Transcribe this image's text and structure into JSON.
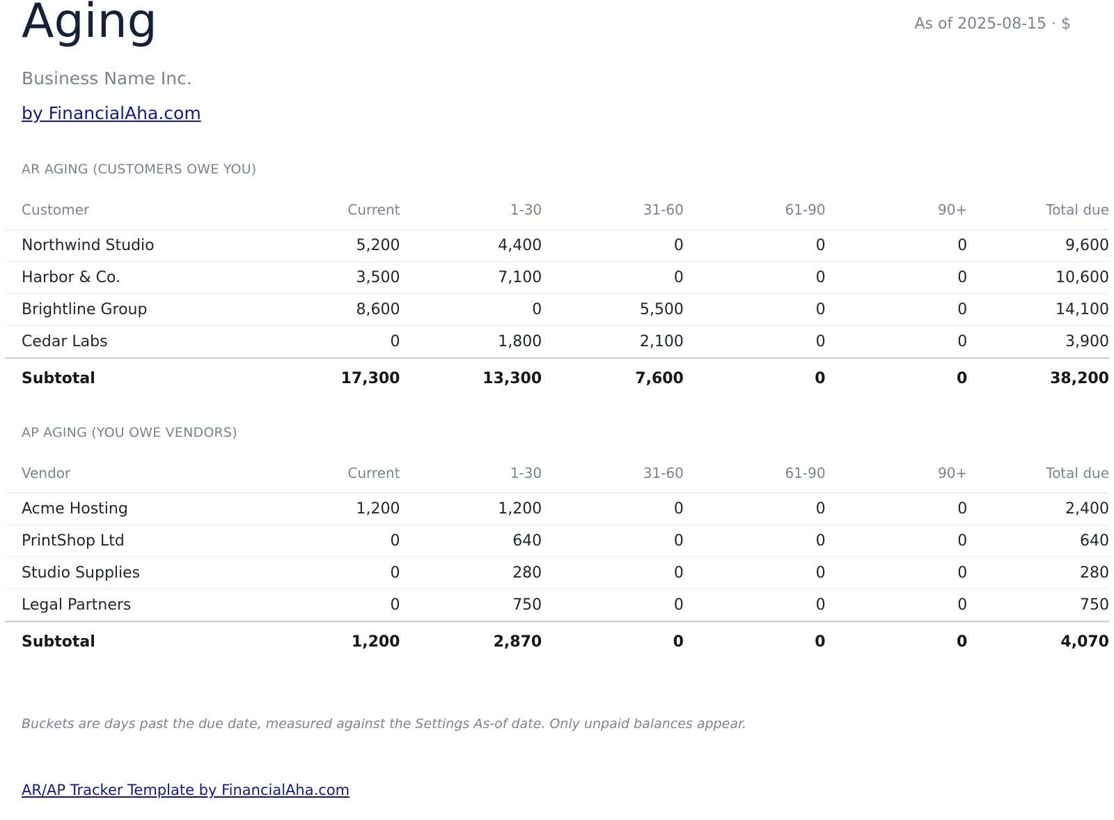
{
  "header": {
    "title": "Aging",
    "as_of": "As of 2025-08-15 · $",
    "business_name": "Business Name Inc.",
    "brand_link": "by FinancialAha.com"
  },
  "ar": {
    "heading": "AR AGING (CUSTOMERS OWE YOU)",
    "columns": [
      "Customer",
      "Current",
      "1-30",
      "31-60",
      "61-90",
      "90+",
      "Total due"
    ],
    "rows": [
      [
        "Northwind Studio",
        "5,200",
        "4,400",
        "0",
        "0",
        "0",
        "9,600"
      ],
      [
        "Harbor & Co.",
        "3,500",
        "7,100",
        "0",
        "0",
        "0",
        "10,600"
      ],
      [
        "Brightline Group",
        "8,600",
        "0",
        "5,500",
        "0",
        "0",
        "14,100"
      ],
      [
        "Cedar Labs",
        "0",
        "1,800",
        "2,100",
        "0",
        "0",
        "3,900"
      ]
    ],
    "subtotal": [
      "Subtotal",
      "17,300",
      "13,300",
      "7,600",
      "0",
      "0",
      "38,200"
    ]
  },
  "ap": {
    "heading": "AP AGING (YOU OWE VENDORS)",
    "columns": [
      "Vendor",
      "Current",
      "1-30",
      "31-60",
      "61-90",
      "90+",
      "Total due"
    ],
    "rows": [
      [
        "Acme Hosting",
        "1,200",
        "1,200",
        "0",
        "0",
        "0",
        "2,400"
      ],
      [
        "PrintShop Ltd",
        "0",
        "640",
        "0",
        "0",
        "0",
        "640"
      ],
      [
        "Studio Supplies",
        "0",
        "280",
        "0",
        "0",
        "0",
        "280"
      ],
      [
        "Legal Partners",
        "0",
        "750",
        "0",
        "0",
        "0",
        "750"
      ]
    ],
    "subtotal": [
      "Subtotal",
      "1,200",
      "2,870",
      "0",
      "0",
      "0",
      "4,070"
    ]
  },
  "footer": {
    "note": "Buckets are days past the due date, measured against the Settings As-of date. Only unpaid balances appear.",
    "link": "AR/AP Tracker Template by FinancialAha.com"
  },
  "colors": {
    "title": "#17203a",
    "muted": "#7a8294",
    "link": "#151a7a",
    "text": "#1f2430"
  }
}
